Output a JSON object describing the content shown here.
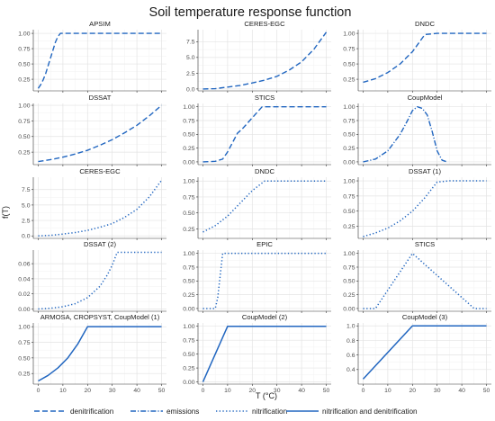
{
  "chart_data": {
    "type": "line",
    "title": "Soil temperature response function",
    "xlabel": "T (°C)",
    "ylabel": "f(T)",
    "xlim": [
      -2,
      52
    ],
    "xticks": [
      0,
      10,
      20,
      30,
      40,
      50
    ],
    "x_tick_labels": [
      "0",
      "10",
      "20",
      "30",
      "40",
      "50"
    ],
    "grid": true,
    "legend_position": "bottom",
    "legend": [
      {
        "key": "denitrification",
        "label": "denitrification"
      },
      {
        "key": "emissions",
        "label": "emissions"
      },
      {
        "key": "nitrification",
        "label": "nitrification"
      },
      {
        "key": "both",
        "label": "nitrification and denitrification"
      }
    ],
    "line_color": "#2166c0",
    "panels": [
      {
        "title": "APSIM",
        "style": "denitrification",
        "ylim": [
          0.06,
          1.06
        ],
        "yticks": [
          0.25,
          0.5,
          0.75,
          1.0
        ],
        "ytick_labels": [
          "0.25",
          "0.50",
          "0.75",
          "1.00"
        ],
        "x": [
          0,
          1,
          2,
          3,
          4,
          5,
          6,
          7,
          8,
          9,
          10,
          11,
          15,
          20,
          30,
          40,
          50
        ],
        "y": [
          0.1,
          0.16,
          0.24,
          0.34,
          0.47,
          0.6,
          0.73,
          0.86,
          0.95,
          1.0,
          1.0,
          1.0,
          1.0,
          1.0,
          1.0,
          1.0,
          1.0
        ]
      },
      {
        "title": "CERES-EGC",
        "style": "denitrification",
        "ylim": [
          -0.3,
          9.4
        ],
        "yticks": [
          0.0,
          2.5,
          5.0,
          7.5
        ],
        "ytick_labels": [
          "0.0",
          "2.5",
          "5.0",
          "7.5"
        ],
        "x": [
          0,
          5,
          10,
          15,
          20,
          25,
          30,
          35,
          40,
          45,
          50
        ],
        "y": [
          0.0,
          0.05,
          0.3,
          0.55,
          0.95,
          1.4,
          2.0,
          3.0,
          4.3,
          6.3,
          9.0
        ]
      },
      {
        "title": "DNDC",
        "style": "denitrification",
        "ylim": [
          0.06,
          1.06
        ],
        "yticks": [
          0.25,
          0.5,
          0.75,
          1.0
        ],
        "ytick_labels": [
          "0.25",
          "0.50",
          "0.75",
          "1.00"
        ],
        "x": [
          0,
          5,
          10,
          15,
          20,
          25,
          30,
          35,
          40,
          45,
          50
        ],
        "y": [
          0.2,
          0.26,
          0.36,
          0.5,
          0.7,
          0.98,
          1.0,
          1.0,
          1.0,
          1.0,
          1.0
        ]
      },
      {
        "title": "DSSAT",
        "style": "denitrification",
        "ylim": [
          0.05,
          1.03
        ],
        "yticks": [
          0.25,
          0.5,
          0.75,
          1.0
        ],
        "ytick_labels": [
          "0.25",
          "0.50",
          "0.75",
          "1.00"
        ],
        "x": [
          0,
          5,
          10,
          15,
          20,
          25,
          30,
          35,
          40,
          45,
          50
        ],
        "y": [
          0.1,
          0.13,
          0.17,
          0.22,
          0.28,
          0.36,
          0.45,
          0.56,
          0.68,
          0.83,
          1.0
        ]
      },
      {
        "title": "STICS",
        "style": "denitrification",
        "ylim": [
          -0.05,
          1.06
        ],
        "yticks": [
          0.0,
          0.25,
          0.5,
          0.75,
          1.0
        ],
        "ytick_labels": [
          "0.00",
          "0.25",
          "0.50",
          "0.75",
          "1.00"
        ],
        "x": [
          0,
          5,
          8,
          10,
          12,
          14,
          16,
          18,
          20,
          22,
          24,
          26,
          28,
          30,
          35,
          40,
          50
        ],
        "y": [
          0.0,
          0.01,
          0.05,
          0.18,
          0.35,
          0.52,
          0.6,
          0.7,
          0.8,
          0.9,
          1.0,
          1.0,
          1.0,
          1.0,
          1.0,
          1.0,
          1.0
        ]
      },
      {
        "title": "CoupModel",
        "style": "emissions",
        "ylim": [
          -0.05,
          1.06
        ],
        "yticks": [
          0.0,
          0.25,
          0.5,
          0.75,
          1.0
        ],
        "ytick_labels": [
          "0.00",
          "0.25",
          "0.50",
          "0.75",
          "1.00"
        ],
        "x": [
          0,
          5,
          10,
          15,
          18,
          20,
          22,
          24,
          26,
          28,
          30,
          32,
          34
        ],
        "y": [
          0.0,
          0.05,
          0.2,
          0.5,
          0.75,
          0.93,
          1.0,
          0.97,
          0.85,
          0.55,
          0.2,
          0.03,
          0.0
        ]
      },
      {
        "title": "CERES-EGC",
        "style": "nitrification",
        "ylim": [
          -0.4,
          9.5
        ],
        "yticks": [
          0.0,
          2.5,
          5.0,
          7.5
        ],
        "ytick_labels": [
          "0.0",
          "2.5",
          "5.0",
          "7.5"
        ],
        "x": [
          0,
          5,
          10,
          15,
          20,
          25,
          30,
          35,
          40,
          45,
          50
        ],
        "y": [
          0.0,
          0.1,
          0.3,
          0.55,
          0.9,
          1.4,
          2.0,
          3.0,
          4.3,
          6.3,
          9.0
        ]
      },
      {
        "title": "DNDC",
        "style": "nitrification",
        "ylim": [
          0.1,
          1.06
        ],
        "yticks": [
          0.25,
          0.5,
          0.75,
          1.0
        ],
        "ytick_labels": [
          "0.25",
          "0.50",
          "0.75",
          "1.00"
        ],
        "x": [
          0,
          5,
          10,
          15,
          20,
          25,
          30,
          35,
          40,
          45,
          50
        ],
        "y": [
          0.2,
          0.3,
          0.45,
          0.65,
          0.85,
          1.0,
          1.0,
          1.0,
          1.0,
          1.0,
          1.0
        ]
      },
      {
        "title": "DSSAT (1)",
        "style": "nitrification",
        "ylim": [
          0.05,
          1.06
        ],
        "yticks": [
          0.25,
          0.5,
          0.75,
          1.0
        ],
        "ytick_labels": [
          "0.25",
          "0.50",
          "0.75",
          "1.00"
        ],
        "x": [
          0,
          5,
          10,
          15,
          20,
          25,
          30,
          35,
          40,
          45,
          50
        ],
        "y": [
          0.08,
          0.14,
          0.22,
          0.34,
          0.5,
          0.72,
          0.98,
          1.0,
          1.0,
          1.0,
          1.0
        ]
      },
      {
        "title": "DSSAT (2)",
        "style": "nitrification",
        "ylim": [
          -0.003,
          0.078
        ],
        "yticks": [
          0.0,
          0.02,
          0.04,
          0.06
        ],
        "ytick_labels": [
          "0.00",
          "0.02",
          "0.04",
          "0.06"
        ],
        "x": [
          0,
          5,
          10,
          15,
          20,
          25,
          28,
          30,
          32,
          35,
          40,
          45,
          50
        ],
        "y": [
          0.0,
          0.001,
          0.003,
          0.007,
          0.015,
          0.03,
          0.045,
          0.058,
          0.075,
          0.075,
          0.075,
          0.075,
          0.075
        ]
      },
      {
        "title": "EPIC",
        "style": "nitrification",
        "ylim": [
          -0.05,
          1.06
        ],
        "yticks": [
          0.0,
          0.25,
          0.5,
          0.75,
          1.0
        ],
        "ytick_labels": [
          "0.00",
          "0.25",
          "0.50",
          "0.75",
          "1.00"
        ],
        "x": [
          0,
          5,
          6,
          7,
          8,
          9,
          10,
          20,
          30,
          40,
          50
        ],
        "y": [
          0.0,
          0.0,
          0.2,
          0.6,
          1.0,
          1.0,
          1.0,
          1.0,
          1.0,
          1.0,
          1.0
        ]
      },
      {
        "title": "STICS",
        "style": "nitrification",
        "ylim": [
          -0.05,
          1.06
        ],
        "yticks": [
          0.0,
          0.25,
          0.5,
          0.75,
          1.0
        ],
        "ytick_labels": [
          "0.00",
          "0.25",
          "0.50",
          "0.75",
          "1.00"
        ],
        "x": [
          0,
          5,
          20,
          45,
          50
        ],
        "y": [
          0.0,
          0.0,
          1.0,
          0.0,
          0.0
        ]
      },
      {
        "title": "ARMOSA, CROPSYST, CoupModel (1)",
        "style": "both",
        "ylim": [
          0.08,
          1.06
        ],
        "yticks": [
          0.25,
          0.5,
          0.75,
          1.0
        ],
        "ytick_labels": [
          "0.25",
          "0.50",
          "0.75",
          "1.00"
        ],
        "x": [
          0,
          4,
          8,
          12,
          16,
          20,
          30,
          40,
          50
        ],
        "y": [
          0.13,
          0.22,
          0.34,
          0.5,
          0.72,
          1.0,
          1.0,
          1.0,
          1.0
        ]
      },
      {
        "title": "CoupModel (2)",
        "style": "both",
        "ylim": [
          -0.04,
          1.06
        ],
        "yticks": [
          0.0,
          0.25,
          0.5,
          0.75,
          1.0
        ],
        "ytick_labels": [
          "0.00",
          "0.25",
          "0.50",
          "0.75",
          "1.00"
        ],
        "x": [
          0,
          2,
          4,
          6,
          8,
          10,
          12,
          20,
          30,
          40,
          50
        ],
        "y": [
          0.0,
          0.2,
          0.4,
          0.6,
          0.8,
          1.0,
          1.0,
          1.0,
          1.0,
          1.0,
          1.0
        ]
      },
      {
        "title": "CoupModel (3)",
        "style": "both",
        "ylim": [
          0.2,
          1.04
        ],
        "yticks": [
          0.4,
          0.6,
          0.8,
          1.0
        ],
        "ytick_labels": [
          "0.4",
          "0.6",
          "0.8",
          "1.0"
        ],
        "x": [
          0,
          20,
          30,
          40,
          50
        ],
        "y": [
          0.27,
          1.0,
          1.0,
          1.0,
          1.0
        ]
      }
    ]
  }
}
